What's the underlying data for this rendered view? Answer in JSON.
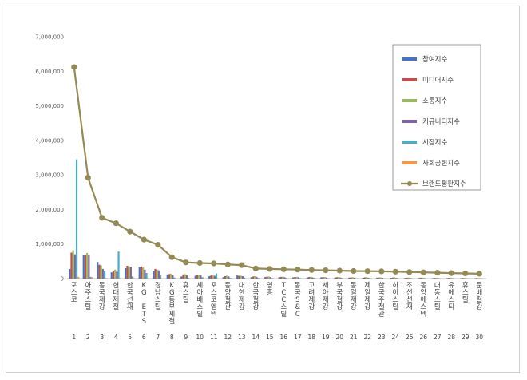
{
  "chart_data": {
    "type": "bar",
    "title": "",
    "xlabel": "",
    "ylabel": "",
    "ylim": [
      0,
      7000000
    ],
    "yticks": [
      "0",
      "1,000,000",
      "2,000,000",
      "3,000,000",
      "4,000,000",
      "5,000,000",
      "6,000,000",
      "7,000,000"
    ],
    "grid": false,
    "legend_position": "right",
    "categories": [
      "포스코",
      "아주스틸",
      "동국제강",
      "현대제철",
      "한국선재",
      "KG ETS",
      "경남스틸",
      "KG동부제철",
      "휴스틸",
      "세아베스틸",
      "포스코엠텍",
      "동양철관",
      "대한제강",
      "한국철강",
      "영흥",
      "TCC스틸",
      "동국S&C",
      "고려제강",
      "세아제강",
      "부국철강",
      "동일제강",
      "제일제강",
      "한국주철관",
      "하이스틸",
      "조선선재",
      "동양에스텍",
      "대동스틸",
      "유에스티",
      "휴스틸",
      "문배철강"
    ],
    "indices": [
      "1",
      "2",
      "3",
      "4",
      "5",
      "6",
      "7",
      "8",
      "9",
      "10",
      "11",
      "12",
      "13",
      "14",
      "15",
      "16",
      "17",
      "18",
      "19",
      "20",
      "21",
      "22",
      "23",
      "24",
      "25",
      "26",
      "27",
      "28",
      "29",
      "30"
    ],
    "series": [
      {
        "name": "참여지수",
        "type": "bar",
        "color": "#4472C4",
        "values": [
          280000,
          680000,
          480000,
          180000,
          300000,
          330000,
          230000,
          120000,
          60000,
          80000,
          70000,
          40000,
          90000,
          40000,
          45000,
          40000,
          35000,
          30000,
          35000,
          30000,
          28000,
          25000,
          25000,
          22000,
          20000,
          18000,
          15000,
          15000,
          12000,
          10000
        ]
      },
      {
        "name": "미디어지수",
        "type": "bar",
        "color": "#C0504D",
        "values": [
          750000,
          690000,
          400000,
          220000,
          370000,
          350000,
          280000,
          130000,
          120000,
          100000,
          90000,
          70000,
          80000,
          60000,
          55000,
          50000,
          45000,
          45000,
          40000,
          40000,
          35000,
          35000,
          30000,
          30000,
          25000,
          25000,
          20000,
          20000,
          18000,
          15000
        ]
      },
      {
        "name": "소통지수",
        "type": "bar",
        "color": "#9BBB59",
        "values": [
          820000,
          740000,
          380000,
          260000,
          350000,
          320000,
          260000,
          140000,
          130000,
          110000,
          90000,
          80000,
          85000,
          70000,
          60000,
          55000,
          50000,
          50000,
          45000,
          45000,
          40000,
          40000,
          35000,
          35000,
          30000,
          30000,
          25000,
          25000,
          20000,
          18000
        ]
      },
      {
        "name": "커뮤니티지수",
        "type": "bar",
        "color": "#8064A2",
        "values": [
          700000,
          680000,
          280000,
          200000,
          340000,
          260000,
          240000,
          110000,
          100000,
          90000,
          80000,
          60000,
          70000,
          50000,
          45000,
          40000,
          40000,
          35000,
          30000,
          30000,
          25000,
          25000,
          22000,
          20000,
          18000,
          15000,
          15000,
          12000,
          10000,
          10000
        ]
      },
      {
        "name": "시장지수",
        "type": "bar",
        "color": "#4BACC6",
        "values": [
          3450000,
          50000,
          220000,
          780000,
          60000,
          160000,
          90000,
          30000,
          20000,
          40000,
          150000,
          20000,
          30000,
          20000,
          15000,
          20000,
          15000,
          20000,
          10000,
          15000,
          10000,
          10000,
          10000,
          10000,
          8000,
          8000,
          6000,
          6000,
          5000,
          5000
        ]
      },
      {
        "name": "사회공헌지수",
        "type": "bar",
        "color": "#F79646",
        "values": [
          50000,
          40000,
          20000,
          15000,
          15000,
          10000,
          10000,
          8000,
          6000,
          6000,
          5000,
          5000,
          5000,
          4000,
          4000,
          4000,
          3000,
          3000,
          3000,
          3000,
          2000,
          2000,
          2000,
          2000,
          2000,
          2000,
          1000,
          1000,
          1000,
          1000
        ]
      },
      {
        "name": "브랜드평판지수",
        "type": "line",
        "color": "#948A54",
        "values": [
          6120000,
          2920000,
          1760000,
          1600000,
          1360000,
          1130000,
          980000,
          620000,
          470000,
          450000,
          440000,
          410000,
          390000,
          290000,
          280000,
          270000,
          260000,
          250000,
          240000,
          230000,
          220000,
          215000,
          210000,
          200000,
          190000,
          180000,
          170000,
          160000,
          150000,
          140000
        ]
      }
    ]
  }
}
